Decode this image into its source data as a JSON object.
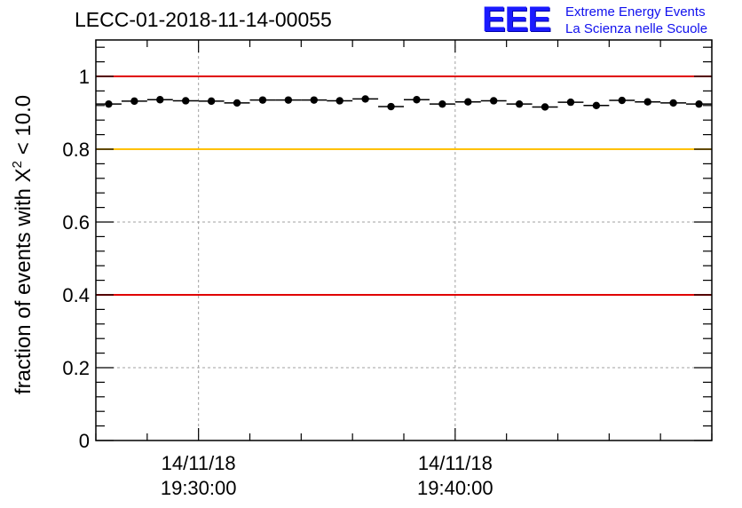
{
  "page": {
    "title": "LECC-01-2018-11-14-00055",
    "logo": {
      "mark": "EEE",
      "line1": "Extreme Energy Events",
      "line2": "La Scienza nelle Scuole",
      "color": "#1a1aff"
    }
  },
  "chart_data": {
    "type": "scatter",
    "title": "LECC-01-2018-11-14-00055",
    "ylabel_prefix": "fraction of events with ",
    "ylabel_symbol": "X",
    "ylabel_sup": "2",
    "ylabel_suffix": " < 10.0",
    "xlabel": "",
    "ylim": [
      0,
      1.1
    ],
    "yticks": [
      0,
      0.2,
      0.4,
      0.6,
      0.8,
      1
    ],
    "ytick_labels": [
      "0",
      "0.2",
      "0.4",
      "0.6",
      "0.8",
      "1"
    ],
    "xlim": [
      "19:26:00",
      "19:50:00"
    ],
    "xticks": [
      {
        "time": "19:30:00",
        "date": "14/11/18",
        "label": "19:30:00"
      },
      {
        "time": "19:40:00",
        "date": "14/11/18",
        "label": "19:40:00"
      }
    ],
    "grid": true,
    "reference_lines": [
      {
        "y": 1.0,
        "color": "#e00000"
      },
      {
        "y": 0.8,
        "color": "#ffc000"
      },
      {
        "y": 0.4,
        "color": "#e00000"
      }
    ],
    "bin_width_seconds": 60,
    "x": [
      "19:26:30",
      "19:27:30",
      "19:28:30",
      "19:29:30",
      "19:30:30",
      "19:31:30",
      "19:32:30",
      "19:33:30",
      "19:34:30",
      "19:35:30",
      "19:36:30",
      "19:37:30",
      "19:38:30",
      "19:39:30",
      "19:40:30",
      "19:41:30",
      "19:42:30",
      "19:43:30",
      "19:44:30",
      "19:45:30",
      "19:46:30",
      "19:47:30",
      "19:48:30",
      "19:49:30"
    ],
    "y": [
      0.924,
      0.932,
      0.936,
      0.933,
      0.932,
      0.927,
      0.935,
      0.935,
      0.935,
      0.933,
      0.938,
      0.917,
      0.936,
      0.924,
      0.93,
      0.933,
      0.924,
      0.916,
      0.929,
      0.92,
      0.934,
      0.93,
      0.927,
      0.924
    ],
    "point_color": "#000000"
  }
}
